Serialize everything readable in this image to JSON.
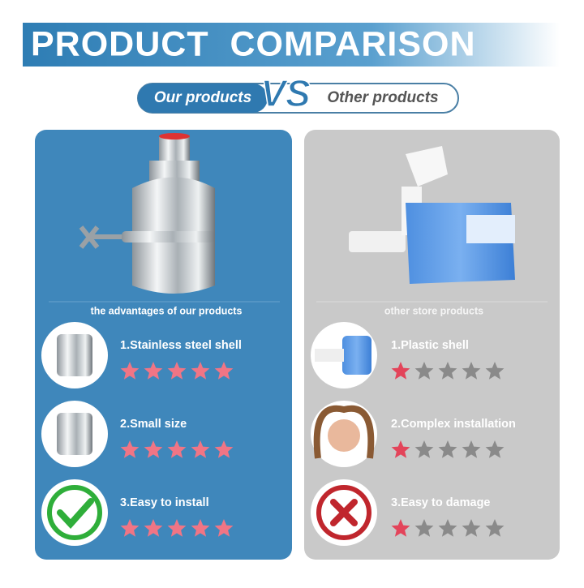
{
  "header": {
    "title": "PRODUCT  COMPARISON",
    "left_label": "Our products",
    "vs": "VS",
    "right_label": "Other products"
  },
  "panels": [
    {
      "caption": "the advantages of our products",
      "items": [
        {
          "text": "1.Stainless steel shell",
          "rating": {
            "filled": 5,
            "total": 5
          }
        },
        {
          "text": "2.Small size",
          "rating": {
            "filled": 5,
            "total": 5
          }
        },
        {
          "text": "3.Easy to install",
          "rating": {
            "filled": 5,
            "total": 5
          }
        }
      ]
    },
    {
      "caption": "other store products",
      "items": [
        {
          "text": "1.Plastic shell",
          "rating": {
            "filled": 1,
            "total": 5
          }
        },
        {
          "text": "2.Complex installation",
          "rating": {
            "filled": 1,
            "total": 5
          }
        },
        {
          "text": "3.Easy to damage",
          "rating": {
            "filled": 1,
            "total": 5
          }
        }
      ]
    }
  ]
}
